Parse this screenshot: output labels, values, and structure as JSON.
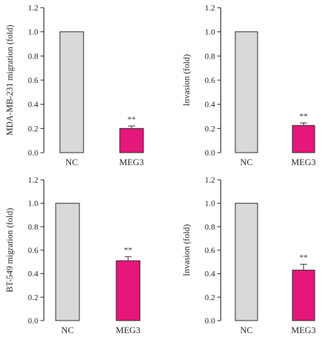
{
  "colors": {
    "nc_bar": "#d9d9d9",
    "meg3_bar": "#e6177a",
    "axis": "#222222"
  },
  "chart_data": [
    {
      "type": "bar",
      "categories": [
        "NC",
        "MEG3"
      ],
      "values": [
        1.0,
        0.2
      ],
      "errors": [
        0,
        0.02
      ],
      "annotations": [
        "",
        "**"
      ],
      "ylabel": "MDA-MB-231 migration (fold)",
      "ylim": [
        0,
        1.2
      ],
      "yticks": [
        "0.0",
        "0.2",
        "0.4",
        "0.6",
        "0.8",
        "1.0",
        "1.2"
      ],
      "grid": false
    },
    {
      "type": "bar",
      "categories": [
        "NC",
        "MEG3"
      ],
      "values": [
        1.0,
        0.225
      ],
      "errors": [
        0,
        0.02
      ],
      "annotations": [
        "",
        "**"
      ],
      "ylabel": "Invasion (fold)",
      "ylim": [
        0,
        1.2
      ],
      "yticks": [
        "0.0",
        "0.2",
        "0.4",
        "0.6",
        "0.8",
        "1.0",
        "1.2"
      ],
      "grid": false
    },
    {
      "type": "bar",
      "categories": [
        "NC",
        "MEG3"
      ],
      "values": [
        1.0,
        0.51
      ],
      "errors": [
        0,
        0.035
      ],
      "annotations": [
        "",
        "**"
      ],
      "ylabel": "BT-549 migration (fold)",
      "ylim": [
        0,
        1.2
      ],
      "yticks": [
        "0.0",
        "0.2",
        "0.4",
        "0.6",
        "0.8",
        "1.0",
        "1.2"
      ],
      "grid": false
    },
    {
      "type": "bar",
      "categories": [
        "NC",
        "MEG3"
      ],
      "values": [
        1.0,
        0.43
      ],
      "errors": [
        0,
        0.05
      ],
      "annotations": [
        "",
        "**"
      ],
      "ylabel": "Invasion (fold)",
      "ylim": [
        0,
        1.2
      ],
      "yticks": [
        "0.0",
        "0.2",
        "0.4",
        "0.6",
        "0.8",
        "1.0",
        "1.2"
      ],
      "grid": false
    }
  ]
}
